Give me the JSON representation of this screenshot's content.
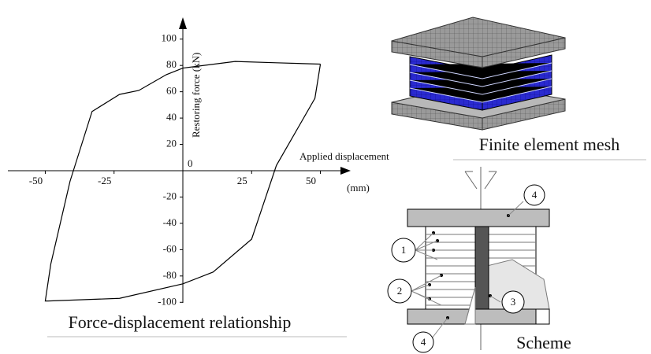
{
  "chart_data": {
    "type": "line",
    "x": [
      50,
      48,
      34,
      25,
      11,
      0,
      -23,
      -49,
      -50,
      -48,
      -41,
      -33,
      -23,
      -16,
      -6,
      0,
      19,
      34,
      50
    ],
    "values": [
      81,
      55,
      4,
      -52,
      -77,
      -86,
      -97,
      -99,
      -99,
      -71,
      -8,
      45,
      58,
      61,
      73,
      78,
      83,
      82,
      81
    ],
    "color": "#000000",
    "xlim": [
      -55,
      55
    ],
    "ylim": [
      -110,
      110
    ],
    "xticks": [
      -50,
      -25,
      25,
      50
    ],
    "yticks": [
      100,
      80,
      60,
      40,
      20,
      0,
      -20,
      -40,
      -60,
      -80,
      -100
    ],
    "xlabel": "Applied displacement",
    "xlabel_unit": "(mm)",
    "ylabel": "Restoring force (kN)",
    "caption": "Force-displacement relationship"
  },
  "mesh": {
    "caption": "Finite element mesh"
  },
  "scheme": {
    "caption": "Scheme",
    "labels": [
      "4",
      "1",
      "2",
      "3",
      "4"
    ]
  }
}
